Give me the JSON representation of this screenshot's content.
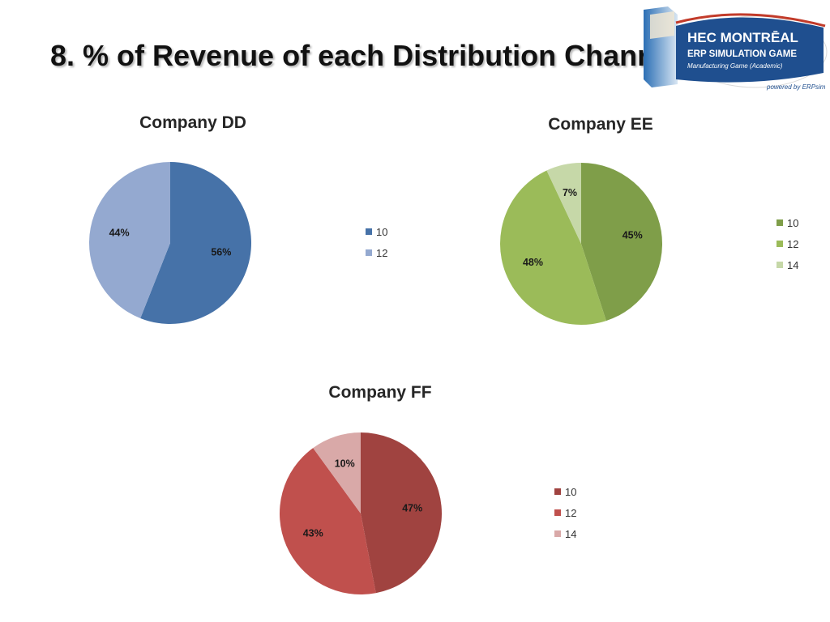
{
  "slide": {
    "title": "8. % of Revenue of each Distribution Channel"
  },
  "logo": {
    "brand": "HEC MONTRĒAL",
    "product": "ERP SIMULATION GAME",
    "subtitle": "Manufacturing Game (Academic)",
    "powered_by": "powered by ERPsim"
  },
  "chart_data": [
    {
      "type": "pie",
      "title": "Company DD",
      "categories": [
        "10",
        "12"
      ],
      "values": [
        56,
        44
      ],
      "labels": [
        "56%",
        "44%"
      ],
      "colors": [
        "#4672a8",
        "#94a9d0"
      ],
      "legend_position": "right"
    },
    {
      "type": "pie",
      "title": "Company EE",
      "categories": [
        "10",
        "12",
        "14"
      ],
      "values": [
        45,
        48,
        7
      ],
      "labels": [
        "45%",
        "48%",
        "7%"
      ],
      "colors": [
        "#7f9e49",
        "#9bbb59",
        "#c6d8a8"
      ],
      "legend_position": "right"
    },
    {
      "type": "pie",
      "title": "Company FF",
      "categories": [
        "10",
        "12",
        "14"
      ],
      "values": [
        47,
        43,
        10
      ],
      "labels": [
        "47%",
        "43%",
        "10%"
      ],
      "colors": [
        "#a04340",
        "#c0504d",
        "#d9a9a8"
      ],
      "legend_position": "right"
    }
  ]
}
